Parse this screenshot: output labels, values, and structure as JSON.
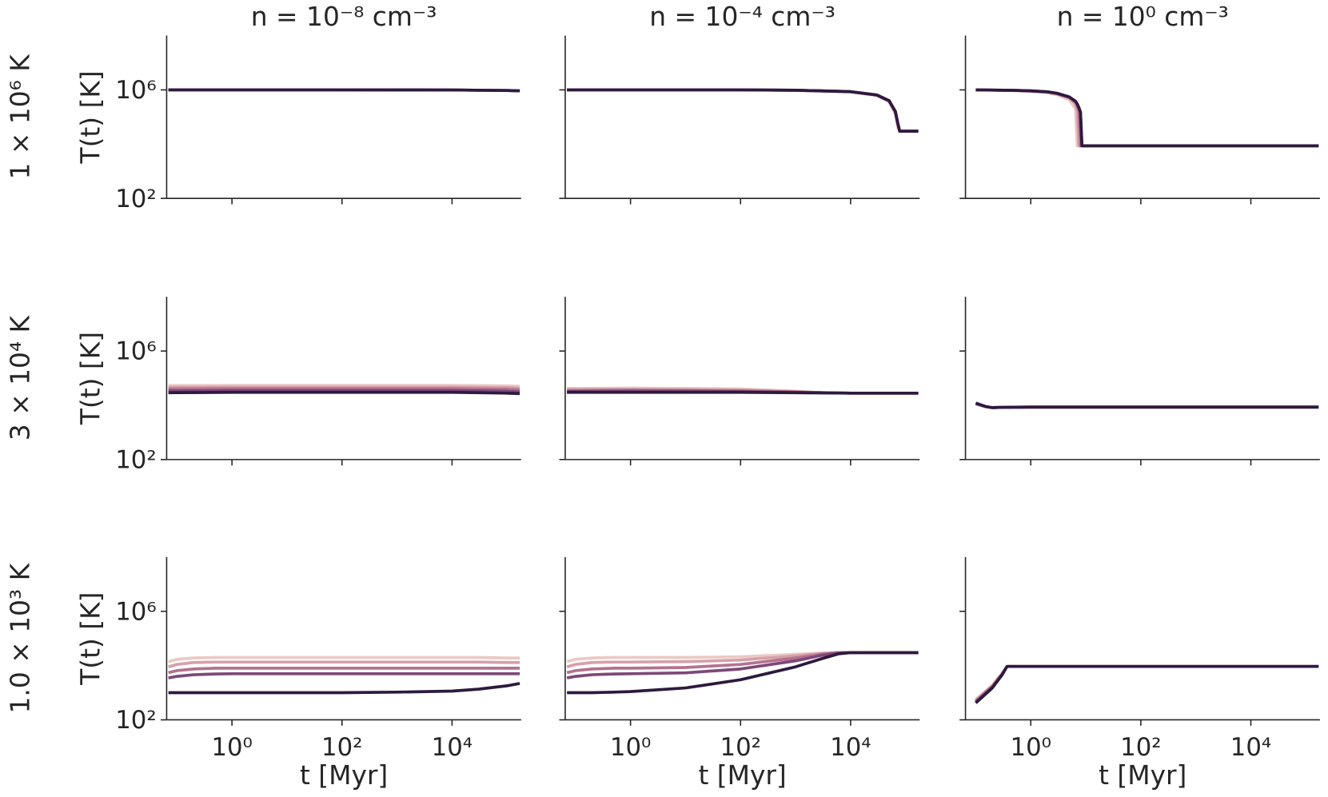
{
  "chart_data": [
    {
      "type": "line",
      "title": "n = 10⁻⁸ cm⁻³",
      "row_label": "1 × 10⁶ K",
      "ylabel": "T(t) [K]",
      "log_x": true,
      "log_y": true,
      "xlim": [
        0.065,
        180000
      ],
      "ylim": [
        100,
        100000000
      ],
      "xticks": [
        1,
        100,
        10000
      ],
      "yticks": [
        {
          "value": 100,
          "label": "10²"
        },
        {
          "value": 1000000,
          "label": "10⁶"
        }
      ],
      "show_xticklabels": false,
      "show_yticklabels": true,
      "x": [
        0.07,
        1,
        100,
        10000,
        100000,
        170000
      ],
      "series": [
        {
          "color": "#ebc9c4",
          "values": [
            1000000,
            1000000,
            1000000,
            990000,
            950000,
            920000
          ]
        },
        {
          "color": "#d7a0aa",
          "values": [
            1000000,
            1000000,
            1000000,
            990000,
            950000,
            920000
          ]
        },
        {
          "color": "#b3728f",
          "values": [
            1000000,
            1000000,
            1000000,
            990000,
            950000,
            920000
          ]
        },
        {
          "color": "#7d4878",
          "values": [
            1000000,
            1000000,
            1000000,
            990000,
            950000,
            920000
          ]
        },
        {
          "color": "#2d1a3d",
          "values": [
            1000000,
            1000000,
            1000000,
            990000,
            950000,
            920000
          ]
        }
      ]
    },
    {
      "type": "line",
      "title": "n = 10⁻⁴ cm⁻³",
      "log_x": true,
      "log_y": true,
      "xlim": [
        0.065,
        180000
      ],
      "ylim": [
        100,
        100000000
      ],
      "xticks": [
        1,
        100,
        10000
      ],
      "yticks": [
        100,
        1000000
      ],
      "show_xticklabels": false,
      "show_yticklabels": false,
      "x": [
        0.07,
        1,
        100,
        1000,
        10000,
        30000,
        50000,
        65000,
        72000,
        78000,
        85000,
        170000
      ],
      "series": [
        {
          "color": "#ebc9c4",
          "values": [
            1000000,
            1000000,
            1000000,
            960000,
            840000,
            620000,
            370000,
            130000,
            40000,
            30000,
            30000,
            30000
          ]
        },
        {
          "color": "#d7a0aa",
          "values": [
            1000000,
            1000000,
            1000000,
            965000,
            850000,
            630000,
            380000,
            145000,
            50000,
            30000,
            30000,
            30000
          ]
        },
        {
          "color": "#b3728f",
          "values": [
            1000000,
            1000000,
            1000000,
            970000,
            860000,
            650000,
            400000,
            160000,
            60000,
            30000,
            30000,
            30000
          ]
        },
        {
          "color": "#7d4878",
          "values": [
            1000000,
            1000000,
            1000000,
            970000,
            860000,
            650000,
            400000,
            160000,
            60000,
            30000,
            30000,
            30000
          ]
        },
        {
          "color": "#2d1a3d",
          "values": [
            1000000,
            1000000,
            1000000,
            970000,
            860000,
            650000,
            400000,
            160000,
            60000,
            30000,
            30000,
            30000
          ]
        }
      ]
    },
    {
      "type": "line",
      "title": "n = 10⁰ cm⁻³",
      "log_x": true,
      "log_y": true,
      "xlim": [
        0.065,
        180000
      ],
      "ylim": [
        100,
        100000000
      ],
      "xticks": [
        1,
        100,
        10000
      ],
      "yticks": [
        100,
        1000000
      ],
      "show_xticklabels": false,
      "show_yticklabels": false,
      "x": [
        0.1,
        0.5,
        1,
        2,
        3,
        5,
        6.5,
        7,
        7.5,
        8,
        8.5,
        9,
        170000
      ],
      "series": [
        {
          "color": "#ebc9c4",
          "values": [
            1000000,
            940000,
            880000,
            780000,
            660000,
            430000,
            200000,
            8700,
            8700,
            8700,
            8700,
            8700,
            8700
          ]
        },
        {
          "color": "#d7a0aa",
          "values": [
            1000000,
            950000,
            900000,
            820000,
            710000,
            500000,
            300000,
            160000,
            8700,
            8700,
            8700,
            8700,
            8700
          ]
        },
        {
          "color": "#b3728f",
          "values": [
            1000000,
            955000,
            910000,
            840000,
            730000,
            530000,
            350000,
            250000,
            170000,
            8700,
            8700,
            8700,
            8700
          ]
        },
        {
          "color": "#7d4878",
          "values": [
            1000000,
            960000,
            920000,
            850000,
            750000,
            550000,
            380000,
            300000,
            220000,
            150000,
            8700,
            8700,
            8700
          ]
        },
        {
          "color": "#2d1a3d",
          "values": [
            1000000,
            960000,
            920000,
            850000,
            750000,
            550000,
            380000,
            300000,
            220000,
            150000,
            8700,
            8700,
            8700
          ]
        }
      ]
    },
    {
      "type": "line",
      "row_label": "3 × 10⁴ K",
      "ylabel": "T(t) [K]",
      "log_x": true,
      "log_y": true,
      "xlim": [
        0.065,
        180000
      ],
      "ylim": [
        100,
        100000000
      ],
      "xticks": [
        1,
        100,
        10000
      ],
      "yticks": [
        {
          "value": 100,
          "label": "10²"
        },
        {
          "value": 1000000,
          "label": "10⁶"
        }
      ],
      "show_xticklabels": false,
      "show_yticklabels": true,
      "x": [
        0.07,
        1,
        100,
        10000,
        100000,
        170000
      ],
      "series": [
        {
          "color": "#ebc9c4",
          "values": [
            53000,
            54000,
            54000,
            54000,
            52000,
            50000
          ]
        },
        {
          "color": "#d7a0aa",
          "values": [
            46000,
            47000,
            47000,
            47000,
            45000,
            43000
          ]
        },
        {
          "color": "#b3728f",
          "values": [
            40000,
            41000,
            41000,
            41000,
            39000,
            37000
          ]
        },
        {
          "color": "#7d4878",
          "values": [
            34000,
            35000,
            35000,
            35000,
            33000,
            31000
          ]
        },
        {
          "color": "#2d1a3d",
          "values": [
            29000,
            30000,
            30000,
            30000,
            28000,
            27000
          ]
        }
      ]
    },
    {
      "type": "line",
      "log_x": true,
      "log_y": true,
      "xlim": [
        0.065,
        180000
      ],
      "ylim": [
        100,
        100000000
      ],
      "xticks": [
        1,
        100,
        10000
      ],
      "yticks": [
        100,
        1000000
      ],
      "show_xticklabels": false,
      "show_yticklabels": false,
      "x": [
        0.07,
        1,
        10,
        100,
        1000,
        3000,
        10000,
        170000
      ],
      "series": [
        {
          "color": "#ebc9c4",
          "values": [
            42000,
            43000,
            42000,
            40000,
            33000,
            29000,
            28000,
            28000
          ]
        },
        {
          "color": "#d7a0aa",
          "values": [
            38000,
            39000,
            38000,
            37000,
            32000,
            29000,
            28000,
            28000
          ]
        },
        {
          "color": "#b3728f",
          "values": [
            35000,
            36000,
            35000,
            34000,
            31000,
            29000,
            28000,
            28000
          ]
        },
        {
          "color": "#7d4878",
          "values": [
            32000,
            33000,
            33000,
            32000,
            30000,
            29000,
            28000,
            28000
          ]
        },
        {
          "color": "#2d1a3d",
          "values": [
            30000,
            30000,
            30000,
            30000,
            29000,
            28500,
            28000,
            28000
          ]
        }
      ]
    },
    {
      "type": "line",
      "log_x": true,
      "log_y": true,
      "xlim": [
        0.065,
        180000
      ],
      "ylim": [
        100,
        100000000
      ],
      "xticks": [
        1,
        100,
        10000
      ],
      "yticks": [
        100,
        1000000
      ],
      "show_xticklabels": false,
      "show_yticklabels": false,
      "x": [
        0.1,
        0.15,
        0.2,
        0.3,
        1,
        100,
        10000,
        170000
      ],
      "series": [
        {
          "color": "#ebc9c4",
          "values": [
            11000,
            9000,
            8200,
            8400,
            8600,
            8600,
            8600,
            8600
          ]
        },
        {
          "color": "#d7a0aa",
          "values": [
            11000,
            9000,
            8200,
            8400,
            8600,
            8600,
            8600,
            8600
          ]
        },
        {
          "color": "#b3728f",
          "values": [
            11500,
            9000,
            8200,
            8400,
            8600,
            8600,
            8600,
            8600
          ]
        },
        {
          "color": "#7d4878",
          "values": [
            12000,
            9000,
            8200,
            8400,
            8600,
            8600,
            8600,
            8600
          ]
        },
        {
          "color": "#2d1a3d",
          "values": [
            12000,
            9000,
            8200,
            8400,
            8600,
            8600,
            8600,
            8600
          ]
        }
      ]
    },
    {
      "type": "line",
      "row_label": "1.0 × 10³ K",
      "ylabel": "T(t) [K]",
      "xlabel": "t [Myr]",
      "log_x": true,
      "log_y": true,
      "xlim": [
        0.065,
        180000
      ],
      "ylim": [
        100,
        100000000
      ],
      "xticks": [
        {
          "value": 1,
          "label": "10⁰"
        },
        {
          "value": 100,
          "label": "10²"
        },
        {
          "value": 10000,
          "label": "10⁴"
        }
      ],
      "yticks": [
        {
          "value": 100,
          "label": "10²"
        },
        {
          "value": 1000000,
          "label": "10⁶"
        }
      ],
      "show_xticklabels": true,
      "show_yticklabels": true,
      "x": [
        0.07,
        0.1,
        0.2,
        0.5,
        1,
        100,
        1000,
        10000,
        30000,
        100000,
        170000
      ],
      "series": [
        {
          "color": "#ebc9c4",
          "values": [
            14000,
            17000,
            19000,
            20000,
            20000,
            20000,
            20000,
            20000,
            20000,
            19000,
            19000
          ]
        },
        {
          "color": "#d7a0aa",
          "values": [
            9000,
            11000,
            13000,
            13500,
            13500,
            13500,
            13500,
            13500,
            13500,
            13000,
            13000
          ]
        },
        {
          "color": "#b3728f",
          "values": [
            5500,
            6500,
            7500,
            8000,
            8000,
            8000,
            8000,
            8000,
            8000,
            8000,
            8000
          ]
        },
        {
          "color": "#7d4878",
          "values": [
            3500,
            4000,
            4600,
            4900,
            5000,
            5000,
            5000,
            5000,
            5000,
            5000,
            5000
          ]
        },
        {
          "color": "#2d1a3d",
          "values": [
            1000,
            1000,
            1000,
            1000,
            1000,
            1000,
            1050,
            1150,
            1350,
            1800,
            2200
          ]
        }
      ]
    },
    {
      "type": "line",
      "xlabel": "t [Myr]",
      "log_x": true,
      "log_y": true,
      "xlim": [
        0.065,
        180000
      ],
      "ylim": [
        100,
        100000000
      ],
      "xticks": [
        {
          "value": 1,
          "label": "10⁰"
        },
        {
          "value": 100,
          "label": "10²"
        },
        {
          "value": 10000,
          "label": "10⁴"
        }
      ],
      "yticks": [
        100,
        1000000
      ],
      "show_xticklabels": true,
      "show_yticklabels": false,
      "x": [
        0.07,
        0.1,
        0.2,
        0.5,
        1,
        10,
        100,
        1000,
        3000,
        6000,
        10000,
        170000
      ],
      "series": [
        {
          "color": "#ebc9c4",
          "values": [
            14000,
            17000,
            19000,
            20000,
            20000,
            20000,
            21000,
            26000,
            29000,
            30000,
            30000,
            30000
          ]
        },
        {
          "color": "#d7a0aa",
          "values": [
            9000,
            11000,
            13000,
            13500,
            13500,
            14000,
            16000,
            23000,
            28000,
            30000,
            30000,
            30000
          ]
        },
        {
          "color": "#b3728f",
          "values": [
            5500,
            6500,
            7500,
            8000,
            8000,
            8500,
            11000,
            19000,
            26000,
            30000,
            30000,
            30000
          ]
        },
        {
          "color": "#7d4878",
          "values": [
            3500,
            4000,
            4600,
            4900,
            5000,
            5400,
            7500,
            15000,
            24000,
            29000,
            30000,
            30000
          ]
        },
        {
          "color": "#2d1a3d",
          "values": [
            1000,
            1000,
            1000,
            1050,
            1100,
            1500,
            3000,
            9000,
            18000,
            27000,
            30000,
            30000
          ]
        }
      ]
    },
    {
      "type": "line",
      "xlabel": "t [Myr]",
      "log_x": true,
      "log_y": true,
      "xlim": [
        0.065,
        180000
      ],
      "ylim": [
        100,
        100000000
      ],
      "xticks": [
        {
          "value": 1,
          "label": "10⁰"
        },
        {
          "value": 100,
          "label": "10²"
        },
        {
          "value": 10000,
          "label": "10⁴"
        }
      ],
      "yticks": [
        100,
        1000000
      ],
      "show_xticklabels": true,
      "show_yticklabels": false,
      "x": [
        0.1,
        0.2,
        0.3,
        0.37,
        1,
        100,
        10000,
        170000
      ],
      "series": [
        {
          "color": "#ebc9c4",
          "values": [
            560,
            1900,
            5200,
            9300,
            9300,
            9300,
            9300,
            9300
          ]
        },
        {
          "color": "#d7a0aa",
          "values": [
            520,
            1800,
            5000,
            9300,
            9300,
            9300,
            9300,
            9300
          ]
        },
        {
          "color": "#b3728f",
          "values": [
            480,
            1700,
            4800,
            9300,
            9300,
            9300,
            9300,
            9300
          ]
        },
        {
          "color": "#7d4878",
          "values": [
            450,
            1600,
            4600,
            9300,
            9300,
            9300,
            9300,
            9300
          ]
        },
        {
          "color": "#2d1a3d",
          "values": [
            420,
            1500,
            4500,
            9300,
            9300,
            9300,
            9300,
            9300
          ]
        }
      ]
    }
  ]
}
